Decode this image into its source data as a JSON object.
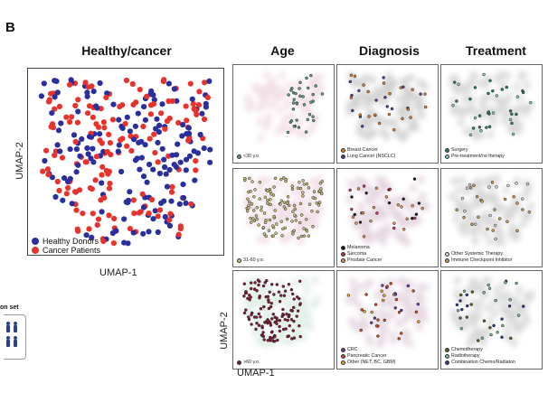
{
  "panel_letter": "B",
  "main": {
    "title": "Healthy/cancer",
    "xlabel": "UMAP-1",
    "ylabel": "UMAP-2",
    "legend": [
      {
        "label": "Healthy Donors",
        "color": "#2b2f9e"
      },
      {
        "label": "Cancer Patients",
        "color": "#e8332c"
      }
    ]
  },
  "column_titles": {
    "age": "Age",
    "diagnosis": "Diagnosis",
    "treatment": "Treatment"
  },
  "small_axes": {
    "xlabel": "UMAP-1",
    "ylabel": "UMAP-2"
  },
  "side_label": "on set",
  "panels": [
    {
      "id": "age-1",
      "legend": [
        {
          "label": "<30 y.o.",
          "color": "#5e9c8f"
        }
      ],
      "highlight": "#5e9c8f",
      "bg": "#e4b8cb"
    },
    {
      "id": "diag-1",
      "legend": [
        {
          "label": "Breast Cancer",
          "color": "#e07b2b"
        },
        {
          "label": "Lung Cancer (NSCLC)",
          "color": "#5a3b8c"
        }
      ],
      "highlight": "#e07b2b",
      "bg": "#9a9a9a"
    },
    {
      "id": "treat-1",
      "legend": [
        {
          "label": "Surgery",
          "color": "#2e7d5b"
        },
        {
          "label": "Pre-treatment/no therapy",
          "color": "#7fc8d6"
        }
      ],
      "highlight": "#2e7d5b",
      "bg": "#a8a8a8"
    },
    {
      "id": "age-2",
      "legend": [
        {
          "label": "31-60 y.o.",
          "color": "#c9c07a"
        }
      ],
      "highlight": "#c9c07a",
      "bg": "#e4b8cb"
    },
    {
      "id": "diag-2",
      "legend": [
        {
          "label": "Melanoma",
          "color": "#1a1a1a"
        },
        {
          "label": "Sarcoma",
          "color": "#c8325a"
        },
        {
          "label": "Prostate Cancer",
          "color": "#e0905a"
        }
      ],
      "highlight": "#c8325a",
      "bg": "#c4a0b8"
    },
    {
      "id": "treat-2",
      "legend": [
        {
          "label": "Other Systemic Therapy",
          "color": "#d8d8d8"
        },
        {
          "label": "Immune Checkpoint Inhibitor",
          "color": "#c99a5a"
        }
      ],
      "highlight": "#c99a5a",
      "bg": "#a8a8a8"
    },
    {
      "id": "age-3",
      "legend": [
        {
          "label": ">60 y.o.",
          "color": "#8a1a3a"
        }
      ],
      "highlight": "#8a1a3a",
      "bg": "#b8d8c8"
    },
    {
      "id": "diag-3",
      "legend": [
        {
          "label": "CRC",
          "color": "#6a3a9a"
        },
        {
          "label": "Pancreatic Cancer",
          "color": "#d04a2a"
        },
        {
          "label": "Other (NET, BC, GBM)",
          "color": "#e8a030"
        }
      ],
      "highlight": "#e8a030",
      "bg": "#c8a8c0"
    },
    {
      "id": "treat-3",
      "legend": [
        {
          "label": "Chemotherapy",
          "color": "#6a5a2a"
        },
        {
          "label": "Radiotherapy",
          "color": "#7ab890"
        },
        {
          "label": "Combination Chemo/Radiaton",
          "color": "#2a3a8a"
        }
      ],
      "highlight": "#6a5a2a",
      "bg": "#a8a8a8"
    }
  ],
  "chart_data": {
    "type": "scatter",
    "title": "Healthy/cancer",
    "xlabel": "UMAP-1",
    "ylabel": "UMAP-2",
    "series": [
      {
        "name": "Healthy Donors"
      },
      {
        "name": "Cancer Patients"
      }
    ],
    "legend_placement": "bottom-left",
    "grid": false
  }
}
